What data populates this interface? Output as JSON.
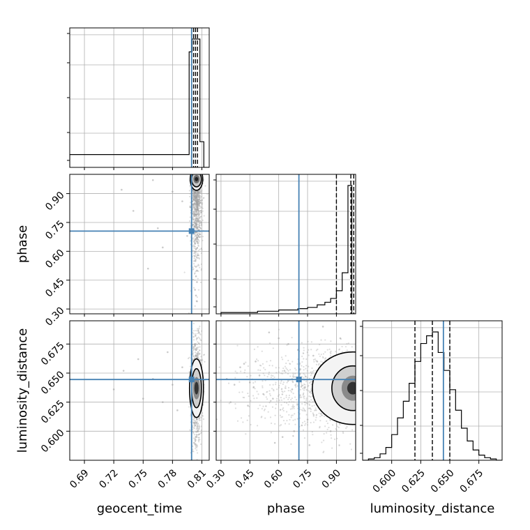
{
  "chart_data": {
    "type": "corner",
    "parameters": [
      "geocent_time",
      "phase",
      "luminosity_distance"
    ],
    "axis_labels": {
      "geocent_time": "geocent_time",
      "phase": "phase",
      "luminosity_distance": "luminosity_distance"
    },
    "ranges": {
      "geocent_time": [
        0.675,
        0.8175
      ],
      "phase": [
        0.275,
        1.0
      ],
      "luminosity_distance": [
        0.575,
        0.695
      ]
    },
    "ticks": {
      "geocent_time": [
        "0.69",
        "0.72",
        "0.75",
        "0.78",
        "0.81"
      ],
      "phase": [
        "0.30",
        "0.45",
        "0.60",
        "0.75",
        "0.90"
      ],
      "luminosity_distance": [
        "0.600",
        "0.625",
        "0.650",
        "0.675"
      ]
    },
    "injection": {
      "geocent_time": 0.7995,
      "phase": 0.705,
      "luminosity_distance": 0.6445
    },
    "quantiles": {
      "geocent_time": [
        0.8015,
        0.8035,
        0.8055
      ],
      "phase": [
        0.9,
        0.975,
        0.99
      ],
      "luminosity_distance": [
        0.62,
        0.635,
        0.65
      ]
    },
    "histograms": {
      "geocent_time": {
        "edges": [
          0.675,
          0.797,
          0.8,
          0.8025,
          0.805,
          0.808,
          0.812,
          0.8175
        ],
        "counts": [
          0.1,
          0.9,
          1.0,
          1.0,
          1.0,
          0.2,
          0.0
        ]
      },
      "phase": {
        "edges": [
          0.3,
          0.49,
          0.6,
          0.7,
          0.75,
          0.8,
          0.84,
          0.87,
          0.9,
          0.93,
          0.96,
          0.98,
          1.0
        ],
        "counts": [
          0.01,
          0.02,
          0.03,
          0.04,
          0.05,
          0.07,
          0.09,
          0.12,
          0.18,
          0.32,
          1.0,
          0.0
        ],
        "peak": 0.98
      },
      "luminosity_distance": {
        "edges": [
          0.575,
          0.58,
          0.585,
          0.59,
          0.595,
          0.6,
          0.605,
          0.61,
          0.615,
          0.62,
          0.625,
          0.63,
          0.635,
          0.64,
          0.645,
          0.65,
          0.655,
          0.66,
          0.665,
          0.67,
          0.675,
          0.68,
          0.685,
          0.69,
          0.695
        ],
        "counts": [
          0.0,
          0.01,
          0.02,
          0.05,
          0.1,
          0.2,
          0.33,
          0.46,
          0.6,
          0.77,
          0.91,
          0.97,
          1.0,
          0.84,
          0.7,
          0.55,
          0.39,
          0.25,
          0.15,
          0.08,
          0.04,
          0.02,
          0.01,
          0.0
        ]
      }
    },
    "scatter_samples": {
      "geocent_time_vs_phase": [
        [
          0.804,
          0.98
        ],
        [
          0.805,
          0.96
        ],
        [
          0.803,
          0.93
        ],
        [
          0.806,
          0.91
        ],
        [
          0.804,
          0.88
        ],
        [
          0.805,
          0.85
        ],
        [
          0.803,
          0.82
        ],
        [
          0.804,
          0.79
        ],
        [
          0.806,
          0.76
        ],
        [
          0.803,
          0.73
        ],
        [
          0.804,
          0.7
        ],
        [
          0.805,
          0.67
        ],
        [
          0.803,
          0.64
        ],
        [
          0.804,
          0.61
        ],
        [
          0.806,
          0.58
        ],
        [
          0.803,
          0.55
        ],
        [
          0.804,
          0.52
        ],
        [
          0.805,
          0.5
        ],
        [
          0.804,
          0.47
        ],
        [
          0.805,
          0.44
        ],
        [
          0.803,
          0.4
        ],
        [
          0.804,
          0.37
        ],
        [
          0.805,
          0.34
        ],
        [
          0.802,
          0.99
        ],
        [
          0.807,
          0.97
        ],
        [
          0.808,
          0.95
        ],
        [
          0.802,
          0.94
        ],
        [
          0.801,
          0.92
        ],
        [
          0.807,
          0.89
        ],
        [
          0.802,
          0.87
        ],
        [
          0.79,
          0.86
        ],
        [
          0.78,
          0.91
        ],
        [
          0.765,
          0.72
        ],
        [
          0.76,
          0.97
        ],
        [
          0.74,
          0.81
        ],
        [
          0.728,
          0.92
        ],
        [
          0.755,
          0.51
        ],
        [
          0.77,
          0.62
        ],
        [
          0.795,
          0.68
        ],
        [
          0.798,
          0.83
        ]
      ],
      "geocent_time_vs_luminosity_distance": [
        [
          0.804,
          0.64
        ],
        [
          0.805,
          0.635
        ],
        [
          0.803,
          0.63
        ],
        [
          0.806,
          0.645
        ],
        [
          0.804,
          0.65
        ],
        [
          0.805,
          0.655
        ],
        [
          0.803,
          0.625
        ],
        [
          0.804,
          0.62
        ],
        [
          0.806,
          0.615
        ],
        [
          0.803,
          0.66
        ],
        [
          0.804,
          0.665
        ],
        [
          0.805,
          0.61
        ],
        [
          0.803,
          0.605
        ],
        [
          0.804,
          0.67
        ],
        [
          0.806,
          0.6
        ],
        [
          0.803,
          0.675
        ],
        [
          0.804,
          0.595
        ],
        [
          0.805,
          0.68
        ],
        [
          0.802,
          0.59
        ],
        [
          0.807,
          0.685
        ],
        [
          0.808,
          0.632
        ],
        [
          0.801,
          0.648
        ],
        [
          0.8,
          0.638
        ],
        [
          0.809,
          0.642
        ],
        [
          0.802,
          0.658
        ],
        [
          0.79,
          0.655
        ],
        [
          0.78,
          0.64
        ],
        [
          0.77,
          0.625
        ],
        [
          0.76,
          0.645
        ],
        [
          0.745,
          0.662
        ],
        [
          0.73,
          0.652
        ],
        [
          0.72,
          0.636
        ],
        [
          0.75,
          0.628
        ],
        [
          0.775,
          0.668
        ],
        [
          0.785,
          0.618
        ]
      ],
      "phase_vs_luminosity_distance": [
        [
          0.95,
          0.64
        ],
        [
          0.97,
          0.635
        ],
        [
          0.93,
          0.63
        ],
        [
          0.98,
          0.645
        ],
        [
          0.96,
          0.65
        ],
        [
          0.9,
          0.655
        ],
        [
          0.88,
          0.625
        ],
        [
          0.85,
          0.62
        ],
        [
          0.82,
          0.615
        ],
        [
          0.8,
          0.66
        ],
        [
          0.78,
          0.665
        ],
        [
          0.75,
          0.61
        ],
        [
          0.72,
          0.605
        ],
        [
          0.7,
          0.67
        ],
        [
          0.68,
          0.6
        ],
        [
          0.65,
          0.675
        ],
        [
          0.62,
          0.595
        ],
        [
          0.6,
          0.68
        ],
        [
          0.58,
          0.59
        ],
        [
          0.55,
          0.685
        ],
        [
          0.52,
          0.632
        ],
        [
          0.5,
          0.648
        ],
        [
          0.47,
          0.638
        ],
        [
          0.45,
          0.642
        ],
        [
          0.42,
          0.658
        ],
        [
          0.4,
          0.655
        ],
        [
          0.37,
          0.64
        ],
        [
          0.35,
          0.625
        ],
        [
          0.33,
          0.645
        ],
        [
          0.99,
          0.662
        ],
        [
          0.92,
          0.68
        ],
        [
          0.87,
          0.6
        ],
        [
          0.83,
          0.69
        ],
        [
          0.76,
          0.588
        ],
        [
          0.63,
          0.652
        ],
        [
          0.57,
          0.628
        ],
        [
          0.48,
          0.66
        ],
        [
          0.44,
          0.622
        ],
        [
          0.67,
          0.636
        ],
        [
          0.74,
          0.647
        ]
      ]
    },
    "contour_cores": {
      "geocent_time_vs_phase": {
        "cx": 0.8045,
        "cy": 0.975
      },
      "geocent_time_vs_luminosity_distance": {
        "cx": 0.8045,
        "cy": 0.637
      },
      "phase_vs_luminosity_distance": {
        "cx": 0.985,
        "cy": 0.637
      }
    },
    "grid": true,
    "colors": {
      "truth": "#4682b4",
      "hist": "#000000",
      "scatter": "#9e9e9e",
      "grid": "#b0b0b0"
    }
  }
}
